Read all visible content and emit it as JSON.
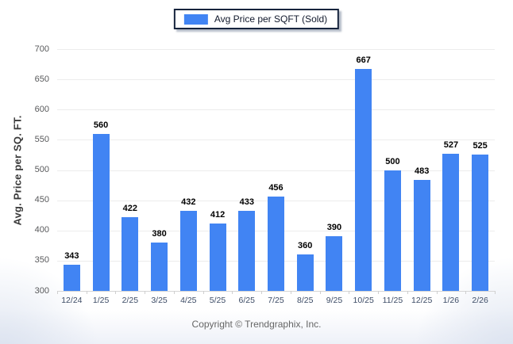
{
  "legend": {
    "label": "Avg Price per SQFT (Sold)",
    "swatch_color": "#4184f3"
  },
  "footer": {
    "copyright": "Copyright © Trendgraphix, Inc."
  },
  "colors": {
    "bar": "#4184f3",
    "gridline": "#ececec",
    "legend_border": "#16243d",
    "x_label": "#3d4c66",
    "y_label": "#58595b",
    "value_label": "#000000",
    "footer_text": "#666666"
  },
  "chart_data": {
    "type": "bar",
    "title": "",
    "xlabel": "",
    "ylabel": "Avg. Price per SQ. FT.",
    "categories": [
      "12/24",
      "1/25",
      "2/25",
      "3/25",
      "4/25",
      "5/25",
      "6/25",
      "7/25",
      "8/25",
      "9/25",
      "10/25",
      "11/25",
      "12/25",
      "1/26",
      "2/26"
    ],
    "values": [
      343,
      560,
      422,
      380,
      432,
      412,
      433,
      456,
      360,
      390,
      667,
      500,
      483,
      527,
      525
    ],
    "ylim": [
      300,
      700
    ],
    "yticks": [
      300,
      350,
      400,
      450,
      500,
      550,
      600,
      650,
      700
    ],
    "grid": true,
    "legend_position": "top-center",
    "legend_entries": [
      "Avg Price per SQFT (Sold)"
    ],
    "bar_color": "#4184f3",
    "value_labels_shown": true
  }
}
